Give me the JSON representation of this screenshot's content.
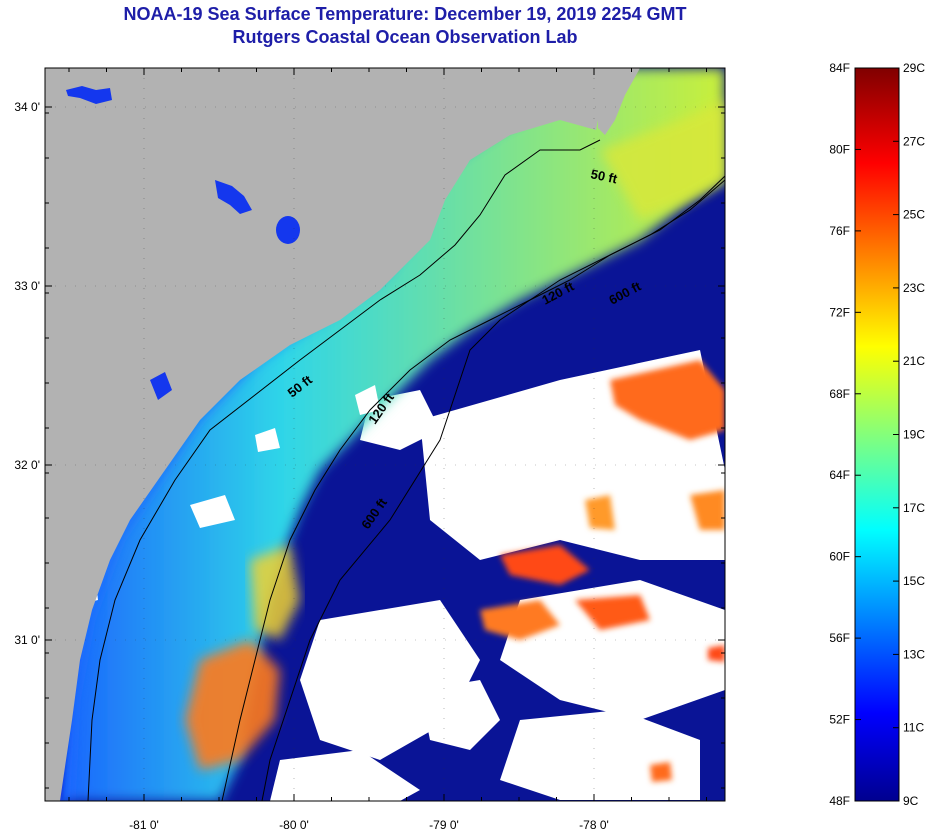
{
  "header": {
    "title": "NOAA-19 Sea Surface Temperature:  December 19, 2019 2254 GMT",
    "subtitle": "Rutgers Coastal Ocean Observation Lab"
  },
  "map": {
    "lat_labels": [
      "34 0'",
      "33 0'",
      "32 0'",
      "31 0'"
    ],
    "lon_labels": [
      "-81 0'",
      "-80 0'",
      "-79 0'",
      "-78 0'"
    ],
    "contour_labels": [
      "50 ft",
      "120 ft",
      "600 ft",
      "50 ft",
      "120 ft",
      "600 ft"
    ],
    "land_color": "#b2b2b2",
    "cloud_color": "#ffffff"
  },
  "colorbar": {
    "fahrenheit_labels": [
      "84F",
      "80F",
      "76F",
      "72F",
      "68F",
      "64F",
      "60F",
      "56F",
      "52F",
      "48F"
    ],
    "celsius_labels": [
      "29C",
      "27C",
      "25C",
      "23C",
      "21C",
      "19C",
      "17C",
      "15C",
      "13C",
      "11C",
      "9C"
    ],
    "range_f": [
      48,
      84
    ],
    "range_c": [
      9,
      29
    ],
    "colormap": "jet"
  }
}
